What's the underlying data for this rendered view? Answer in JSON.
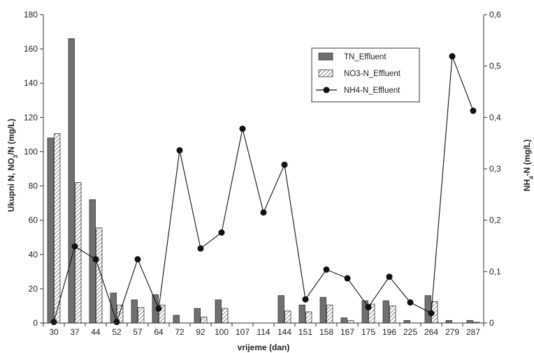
{
  "chart_data": {
    "type": "bar",
    "categories": [
      "30",
      "37",
      "44",
      "52",
      "57",
      "64",
      "72",
      "92",
      "100",
      "107",
      "114",
      "144",
      "151",
      "158",
      "167",
      "175",
      "196",
      "225",
      "264",
      "279",
      "287"
    ],
    "xlabel": "vrijeme (dan)",
    "ylabel_left": {
      "prefix": "Ukupni N, NO",
      "sub": "3",
      "suffix": "/N (mg/L)"
    },
    "ylabel_right": {
      "prefix": "NH",
      "sub": "4",
      "suffix": "-N (mg/L)"
    },
    "ylim_left": [
      0,
      180
    ],
    "ylim_right": [
      0,
      0.6
    ],
    "yticks_left": [
      "0",
      "20",
      "40",
      "60",
      "80",
      "100",
      "120",
      "140",
      "160",
      "180"
    ],
    "yticks_right": [
      "0",
      "0,1",
      "0,2",
      "0,3",
      "0,4",
      "0,5",
      "0,6"
    ],
    "legend_position": "top-right",
    "grid": false,
    "series": [
      {
        "name": "TN_Effluent",
        "type": "bar",
        "axis": "left",
        "color": "#707070",
        "values": [
          108,
          166,
          72,
          17.5,
          13.5,
          16.5,
          4.5,
          8.5,
          13.5,
          null,
          null,
          16,
          10.5,
          15,
          3,
          13,
          13,
          1.5,
          16,
          1.5,
          1.5
        ]
      },
      {
        "name": "NO3-N_Effluent",
        "type": "bar",
        "axis": "left",
        "color": "#ffffff",
        "pattern": "hatched",
        "values": [
          110.5,
          82,
          55.5,
          10.5,
          9,
          10.5,
          null,
          3.5,
          8.5,
          null,
          null,
          7,
          6.5,
          10.5,
          1.5,
          11,
          10,
          null,
          12.5,
          null,
          0.5
        ]
      },
      {
        "name": "NH4-N_Effluent",
        "type": "line",
        "axis": "right",
        "color": "#111111",
        "values": [
          0.002,
          0.149,
          0.124,
          0.002,
          0.124,
          0.028,
          0.336,
          0.145,
          0.176,
          0.378,
          0.215,
          0.308,
          0.046,
          0.104,
          0.087,
          0.031,
          0.09,
          0.04,
          0.019,
          0.519,
          0.413
        ]
      }
    ]
  }
}
